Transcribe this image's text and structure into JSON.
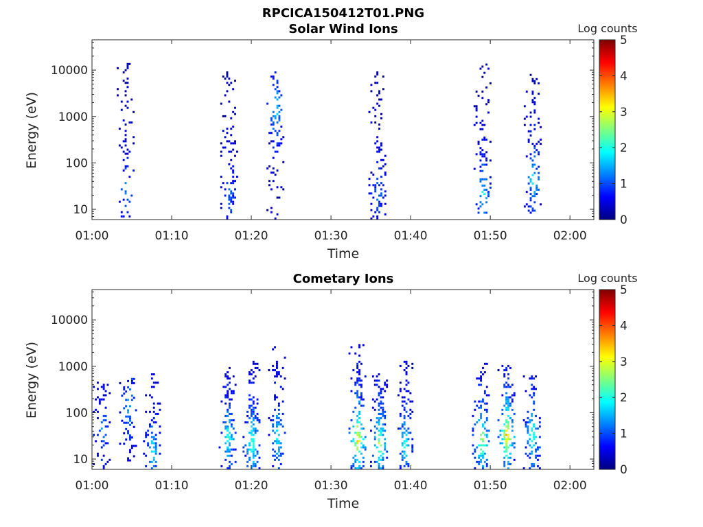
{
  "figure_title": "RPCICA150412T01.PNG",
  "colormap": [
    "#00007f",
    "#0000ff",
    "#007fff",
    "#00ffff",
    "#7fff7f",
    "#ffff00",
    "#ff7f00",
    "#ff0000",
    "#7f0000"
  ],
  "chart_data": [
    {
      "type": "heatmap",
      "title": "Solar Wind Ions",
      "xlabel": "Time",
      "ylabel": "Energy (eV)",
      "x_ticks": [
        "01:00",
        "01:10",
        "01:20",
        "01:30",
        "01:40",
        "01:50",
        "02:00"
      ],
      "xlim_minutes": [
        0,
        63
      ],
      "y_scale": "log",
      "y_ticks": [
        10,
        100,
        1000,
        10000
      ],
      "ylim": [
        6,
        45000
      ],
      "colorbar": {
        "label": "Log counts",
        "range": [
          0,
          5
        ],
        "ticks": [
          0,
          1,
          2,
          3,
          4,
          5
        ]
      },
      "bursts": [
        {
          "t": 4.2,
          "e_min": 6,
          "e_max": 14000,
          "peak_e": 25,
          "peak_log": 1.2,
          "density": 0.35
        },
        {
          "t": 17.2,
          "e_min": 6,
          "e_max": 9000,
          "peak_e": 18,
          "peak_log": 1.0,
          "density": 0.4
        },
        {
          "t": 23.0,
          "e_min": 6,
          "e_max": 9000,
          "peak_e": 1300,
          "peak_log": 1.8,
          "density": 0.4
        },
        {
          "t": 35.8,
          "e_min": 6,
          "e_max": 9000,
          "peak_e": 20,
          "peak_log": 1.0,
          "density": 0.5
        },
        {
          "t": 49.0,
          "e_min": 8,
          "e_max": 13000,
          "peak_e": 20,
          "peak_log": 1.8,
          "density": 0.45
        },
        {
          "t": 55.3,
          "e_min": 8,
          "e_max": 8000,
          "peak_e": 40,
          "peak_log": 1.8,
          "density": 0.45
        }
      ]
    },
    {
      "type": "heatmap",
      "title": "Cometary Ions",
      "xlabel": "Time",
      "ylabel": "Energy (eV)",
      "x_ticks": [
        "01:00",
        "01:10",
        "01:20",
        "01:30",
        "01:40",
        "01:50",
        "02:00"
      ],
      "xlim_minutes": [
        0,
        63
      ],
      "y_scale": "log",
      "y_ticks": [
        10,
        100,
        1000,
        10000
      ],
      "ylim": [
        6,
        45000
      ],
      "colorbar": {
        "label": "Log counts",
        "range": [
          0,
          5
        ],
        "ticks": [
          0,
          1,
          2,
          3,
          4,
          5
        ]
      },
      "bursts": [
        {
          "t": 1.2,
          "e_min": 6,
          "e_max": 500,
          "peak_e": 40,
          "peak_log": 1.2,
          "density": 0.4
        },
        {
          "t": 4.5,
          "e_min": 8,
          "e_max": 600,
          "peak_e": 150,
          "peak_log": 1.5,
          "density": 0.35
        },
        {
          "t": 7.5,
          "e_min": 6,
          "e_max": 700,
          "peak_e": 15,
          "peak_log": 1.8,
          "density": 0.45
        },
        {
          "t": 17.0,
          "e_min": 6,
          "e_max": 900,
          "peak_e": 25,
          "peak_log": 2.0,
          "density": 0.5
        },
        {
          "t": 20.0,
          "e_min": 6,
          "e_max": 1200,
          "peak_e": 20,
          "peak_log": 2.4,
          "density": 0.6
        },
        {
          "t": 23.2,
          "e_min": 6,
          "e_max": 2500,
          "peak_e": 30,
          "peak_log": 1.9,
          "density": 0.5
        },
        {
          "t": 33.3,
          "e_min": 6,
          "e_max": 3000,
          "peak_e": 25,
          "peak_log": 3.5,
          "density": 0.7
        },
        {
          "t": 36.0,
          "e_min": 6,
          "e_max": 700,
          "peak_e": 20,
          "peak_log": 2.8,
          "density": 0.65
        },
        {
          "t": 39.2,
          "e_min": 6,
          "e_max": 1200,
          "peak_e": 20,
          "peak_log": 2.0,
          "density": 0.55
        },
        {
          "t": 48.8,
          "e_min": 6,
          "e_max": 1300,
          "peak_e": 25,
          "peak_log": 2.9,
          "density": 0.6
        },
        {
          "t": 52.0,
          "e_min": 6,
          "e_max": 1100,
          "peak_e": 30,
          "peak_log": 3.6,
          "density": 0.65
        },
        {
          "t": 55.2,
          "e_min": 6,
          "e_max": 700,
          "peak_e": 30,
          "peak_log": 2.3,
          "density": 0.55
        }
      ]
    }
  ]
}
